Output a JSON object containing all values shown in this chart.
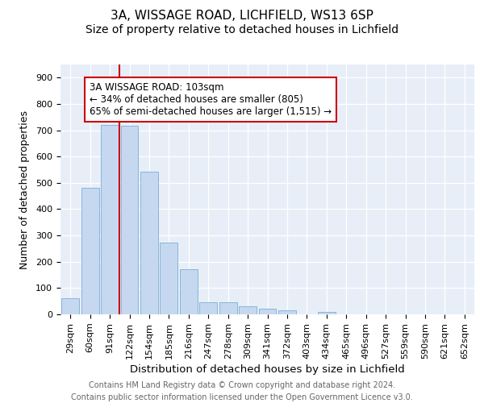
{
  "title1": "3A, WISSAGE ROAD, LICHFIELD, WS13 6SP",
  "title2": "Size of property relative to detached houses in Lichfield",
  "xlabel": "Distribution of detached houses by size in Lichfield",
  "ylabel": "Number of detached properties",
  "categories": [
    "29sqm",
    "60sqm",
    "91sqm",
    "122sqm",
    "154sqm",
    "185sqm",
    "216sqm",
    "247sqm",
    "278sqm",
    "309sqm",
    "341sqm",
    "372sqm",
    "403sqm",
    "434sqm",
    "465sqm",
    "496sqm",
    "527sqm",
    "559sqm",
    "590sqm",
    "621sqm",
    "652sqm"
  ],
  "values": [
    60,
    480,
    720,
    718,
    543,
    272,
    172,
    47,
    47,
    32,
    20,
    15,
    0,
    8,
    0,
    0,
    0,
    0,
    0,
    0,
    0
  ],
  "bar_color": "#c5d8f0",
  "bar_edge_color": "#7aaed6",
  "vline_x_data": 2.5,
  "vline_color": "#cc0000",
  "annotation_text": "3A WISSAGE ROAD: 103sqm\n← 34% of detached houses are smaller (805)\n65% of semi-detached houses are larger (1,515) →",
  "annotation_box_facecolor": "#ffffff",
  "annotation_box_edgecolor": "#cc0000",
  "ylim": [
    0,
    950
  ],
  "yticks": [
    0,
    100,
    200,
    300,
    400,
    500,
    600,
    700,
    800,
    900
  ],
  "plot_bg_color": "#e8eef8",
  "fig_bg_color": "#ffffff",
  "footer": "Contains HM Land Registry data © Crown copyright and database right 2024.\nContains public sector information licensed under the Open Government Licence v3.0.",
  "title1_fontsize": 11,
  "title2_fontsize": 10,
  "tick_fontsize": 8,
  "xlabel_fontsize": 9.5,
  "ylabel_fontsize": 9,
  "footer_fontsize": 7,
  "annot_fontsize": 8.5
}
